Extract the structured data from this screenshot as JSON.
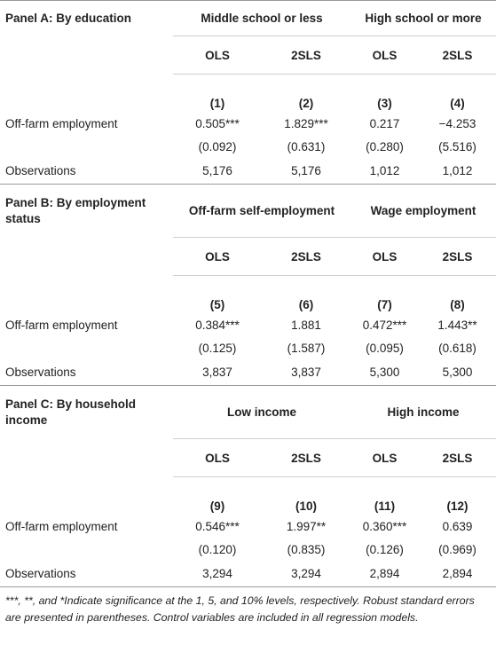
{
  "panels": [
    {
      "title": "Panel A: By education",
      "groups": [
        "Middle school or less",
        "High school or more"
      ],
      "methods": [
        "OLS",
        "2SLS",
        "OLS",
        "2SLS"
      ],
      "columns": [
        "(1)",
        "(2)",
        "(3)",
        "(4)"
      ],
      "coef_label": "Off-farm employment",
      "coefs": [
        "0.505***",
        "1.829***",
        "0.217",
        "−4.253"
      ],
      "ses": [
        "(0.092)",
        "(0.631)",
        "(0.280)",
        "(5.516)"
      ],
      "obs_label": "Observations",
      "obs": [
        "5,176",
        "5,176",
        "1,012",
        "1,012"
      ]
    },
    {
      "title": "Panel B: By employment status",
      "groups": [
        "Off-farm self-employment",
        "Wage employment"
      ],
      "methods": [
        "OLS",
        "2SLS",
        "OLS",
        "2SLS"
      ],
      "columns": [
        "(5)",
        "(6)",
        "(7)",
        "(8)"
      ],
      "coef_label": "Off-farm employment",
      "coefs": [
        "0.384***",
        "1.881",
        "0.472***",
        "1.443**"
      ],
      "ses": [
        "(0.125)",
        "(1.587)",
        "(0.095)",
        "(0.618)"
      ],
      "obs_label": "Observations",
      "obs": [
        "3,837",
        "3,837",
        "5,300",
        "5,300"
      ]
    },
    {
      "title": "Panel C: By household income",
      "groups": [
        "Low income",
        "High income"
      ],
      "methods": [
        "OLS",
        "2SLS",
        "OLS",
        "2SLS"
      ],
      "columns": [
        "(9)",
        "(10)",
        "(11)",
        "(12)"
      ],
      "coef_label": "Off-farm employment",
      "coefs": [
        "0.546***",
        "1.997**",
        "0.360***",
        "0.639"
      ],
      "ses": [
        "(0.120)",
        "(0.835)",
        "(0.126)",
        "(0.969)"
      ],
      "obs_label": "Observations",
      "obs": [
        "3,294",
        "3,294",
        "2,894",
        "2,894"
      ]
    }
  ],
  "footnote": "***, **, and *Indicate significance at the 1, 5, and 10% levels, respectively. Robust standard errors are presented in parentheses. Control variables are included in all regression models."
}
